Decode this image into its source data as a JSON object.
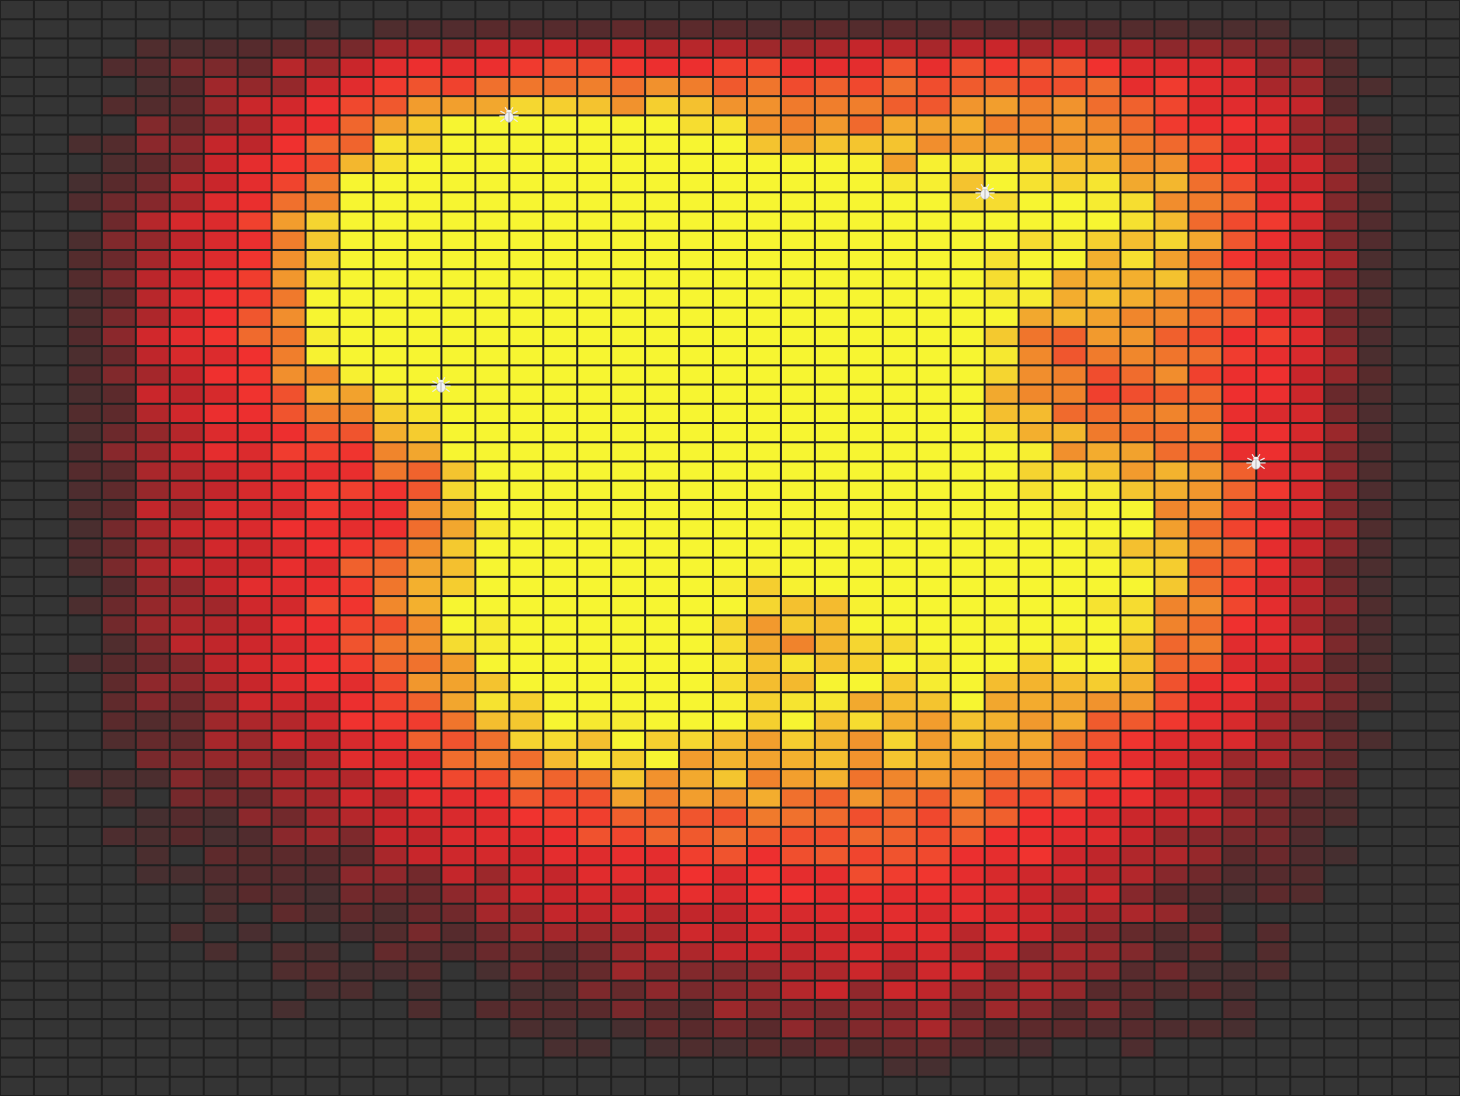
{
  "board": {
    "columns": 43,
    "rows": 57,
    "background_color": "#343434",
    "gridline_color": "#1f1f1f",
    "colors": {
      "cool": "#343434",
      "dark_red": "#5a2a2c",
      "red": "#c8262b",
      "bright_red": "#f0302f",
      "orange": "#f0802c",
      "yellow": "#f7f531"
    },
    "hotspots": [
      {
        "col": 17,
        "row": 14,
        "intensity": 1.0,
        "radius": 5.5
      },
      {
        "col": 13,
        "row": 13,
        "intensity": 0.55,
        "radius": 4.0
      },
      {
        "col": 21,
        "row": 20,
        "intensity": 0.7,
        "radius": 4.0
      },
      {
        "col": 17,
        "row": 34,
        "intensity": 0.75,
        "radius": 5.0
      },
      {
        "col": 32,
        "row": 30,
        "intensity": 0.75,
        "radius": 5.0
      },
      {
        "col": 33,
        "row": 12,
        "intensity": 0.6,
        "radius": 5.0
      },
      {
        "col": 26,
        "row": 44,
        "intensity": 0.45,
        "radius": 5.5
      },
      {
        "col": 28,
        "row": 7,
        "intensity": 0.4,
        "radius": 6.0
      },
      {
        "col": 8,
        "row": 15,
        "intensity": 0.3,
        "radius": 6.0
      },
      {
        "col": 9,
        "row": 31,
        "intensity": 0.3,
        "radius": 6.0
      },
      {
        "col": 24,
        "row": 25,
        "intensity": 0.4,
        "radius": 7.0
      }
    ],
    "cold_spots": [
      {
        "col": 31,
        "row": 19,
        "radius": 2.2
      },
      {
        "col": 12,
        "row": 24,
        "radius": 2.5
      },
      {
        "col": 22,
        "row": 31,
        "radius": 1.8
      }
    ]
  },
  "bugs": [
    {
      "name": "bug-1",
      "icon": "bug-icon",
      "col": 15,
      "row": 6
    },
    {
      "name": "bug-2",
      "icon": "bug-icon",
      "col": 29,
      "row": 10
    },
    {
      "name": "bug-3",
      "icon": "bug-icon",
      "col": 13,
      "row": 20
    },
    {
      "name": "bug-4",
      "icon": "bug-icon",
      "col": 37,
      "row": 24
    }
  ]
}
